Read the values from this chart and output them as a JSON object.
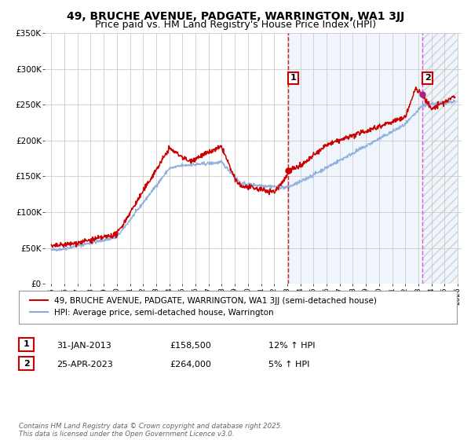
{
  "title": "49, BRUCHE AVENUE, PADGATE, WARRINGTON, WA1 3JJ",
  "subtitle": "Price paid vs. HM Land Registry's House Price Index (HPI)",
  "x_start": 1995,
  "x_end": 2026,
  "y_min": 0,
  "y_max": 350000,
  "y_ticks": [
    0,
    50000,
    100000,
    150000,
    200000,
    250000,
    300000,
    350000
  ],
  "y_tick_labels": [
    "£0",
    "£50K",
    "£100K",
    "£150K",
    "£200K",
    "£250K",
    "£300K",
    "£350K"
  ],
  "x_ticks": [
    1995,
    1996,
    1997,
    1998,
    1999,
    2000,
    2001,
    2002,
    2003,
    2004,
    2005,
    2006,
    2007,
    2008,
    2009,
    2010,
    2011,
    2012,
    2013,
    2014,
    2015,
    2016,
    2017,
    2018,
    2019,
    2020,
    2021,
    2022,
    2023,
    2024,
    2025,
    2026
  ],
  "property_color": "#cc0000",
  "hpi_color": "#88aadd",
  "vline1_color": "#cc0000",
  "vline2_color": "#cc44cc",
  "shade_color": "#ddeeff",
  "hatch_color": "#bbbbbb",
  "vline1_x": 2013.08,
  "vline2_x": 2023.32,
  "marker1_x": 2013.08,
  "marker1_y": 158500,
  "marker2_x": 2023.32,
  "marker2_y": 264000,
  "legend_label1": "49, BRUCHE AVENUE, PADGATE, WARRINGTON, WA1 3JJ (semi-detached house)",
  "legend_label2": "HPI: Average price, semi-detached house, Warrington",
  "table_row1": [
    "1",
    "31-JAN-2013",
    "£158,500",
    "12% ↑ HPI"
  ],
  "table_row2": [
    "2",
    "25-APR-2023",
    "£264,000",
    "5% ↑ HPI"
  ],
  "footer": "Contains HM Land Registry data © Crown copyright and database right 2025.\nThis data is licensed under the Open Government Licence v3.0.",
  "title_fontsize": 10,
  "subtitle_fontsize": 9,
  "axis_fontsize": 7.5,
  "legend_fontsize": 7.5
}
